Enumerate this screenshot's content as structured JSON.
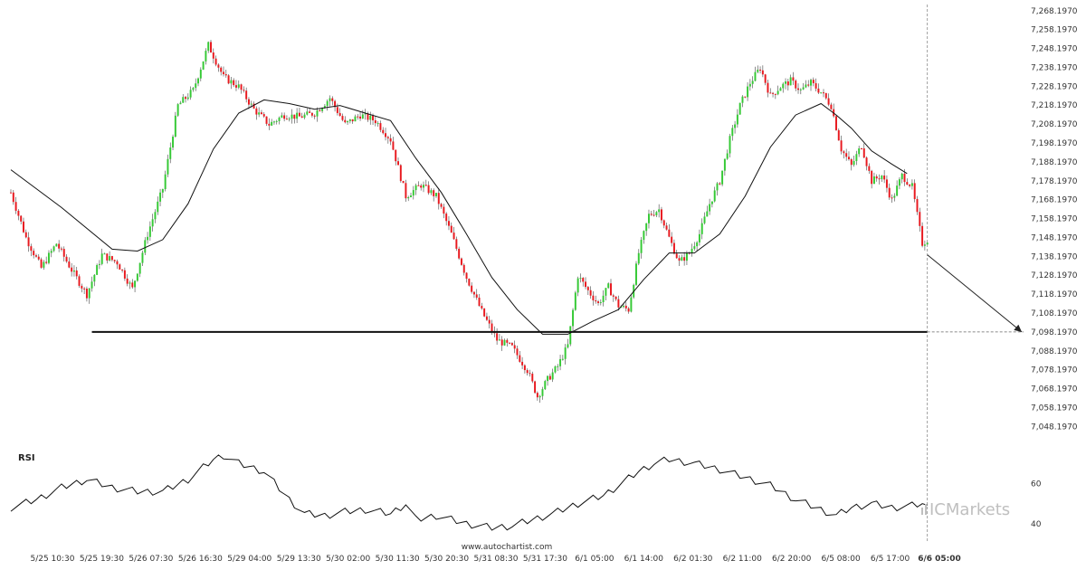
{
  "chart_data": {
    "type": "candlestick",
    "y_axis": {
      "ticks": [
        "7,048.1970",
        "7,058.1970",
        "7,068.1970",
        "7,078.1970",
        "7,088.1970",
        "7,098.1970",
        "7,108.1970",
        "7,118.1970",
        "7,128.1970",
        "7,138.1970",
        "7,148.1970",
        "7,158.1970",
        "7,168.1970",
        "7,178.1970",
        "7,188.1970",
        "7,198.1970",
        "7,208.1970",
        "7,218.1970",
        "7,228.1970",
        "7,238.1970",
        "7,248.1970",
        "7,258.1970",
        "7,268.1970"
      ],
      "ylim": [
        7045,
        7270
      ]
    },
    "x_axis": {
      "ticks": [
        "5/25 10:30",
        "5/25 19:30",
        "5/26 07:30",
        "5/26 16:30",
        "5/29 04:00",
        "5/29 13:30",
        "5/30 02:00",
        "5/30 11:30",
        "5/30 20:30",
        "5/31 08:30",
        "5/31 17:30",
        "6/1 05:00",
        "6/1 14:00",
        "6/2 01:30",
        "6/2 11:00",
        "6/2 20:00",
        "6/5 08:00",
        "6/5 17:00",
        "6/6 05:00"
      ],
      "highlighted": "6/6 05:00"
    },
    "price_path": [
      [
        0,
        7172
      ],
      [
        3,
        7148
      ],
      [
        6,
        7132
      ],
      [
        9,
        7145
      ],
      [
        12,
        7131
      ],
      [
        15,
        7118
      ],
      [
        18,
        7139
      ],
      [
        21,
        7135
      ],
      [
        24,
        7121
      ],
      [
        27,
        7150
      ],
      [
        30,
        7174
      ],
      [
        33,
        7218
      ],
      [
        36,
        7226
      ],
      [
        39,
        7250
      ],
      [
        42,
        7233
      ],
      [
        45,
        7228
      ],
      [
        48,
        7216
      ],
      [
        51,
        7208
      ],
      [
        54,
        7213
      ],
      [
        57,
        7212
      ],
      [
        60,
        7214
      ],
      [
        63,
        7222
      ],
      [
        66,
        7208
      ],
      [
        69,
        7213
      ],
      [
        72,
        7210
      ],
      [
        75,
        7200
      ],
      [
        78,
        7170
      ],
      [
        81,
        7176
      ],
      [
        84,
        7170
      ],
      [
        87,
        7150
      ],
      [
        90,
        7127
      ],
      [
        93,
        7109
      ],
      [
        96,
        7094
      ],
      [
        99,
        7090
      ],
      [
        102,
        7078
      ],
      [
        104,
        7064
      ],
      [
        106,
        7073
      ],
      [
        108,
        7080
      ],
      [
        110,
        7091
      ],
      [
        112,
        7128
      ],
      [
        114,
        7120
      ],
      [
        116,
        7113
      ],
      [
        118,
        7122
      ],
      [
        120,
        7112
      ],
      [
        122,
        7110
      ],
      [
        124,
        7140
      ],
      [
        126,
        7160
      ],
      [
        128,
        7163
      ],
      [
        130,
        7148
      ],
      [
        132,
        7135
      ],
      [
        134,
        7140
      ],
      [
        136,
        7150
      ],
      [
        138,
        7166
      ],
      [
        140,
        7178
      ],
      [
        142,
        7200
      ],
      [
        144,
        7218
      ],
      [
        146,
        7230
      ],
      [
        148,
        7238
      ],
      [
        150,
        7223
      ],
      [
        152,
        7228
      ],
      [
        154,
        7231
      ],
      [
        156,
        7226
      ],
      [
        158,
        7230
      ],
      [
        160,
        7225
      ],
      [
        162,
        7218
      ],
      [
        164,
        7195
      ],
      [
        166,
        7186
      ],
      [
        168,
        7197
      ],
      [
        170,
        7178
      ],
      [
        172,
        7181
      ],
      [
        174,
        7168
      ],
      [
        176,
        7181
      ],
      [
        178,
        7175
      ],
      [
        180,
        7145
      ],
      [
        181,
        7147
      ]
    ],
    "moving_average": [
      [
        0,
        7184
      ],
      [
        10,
        7164
      ],
      [
        20,
        7142
      ],
      [
        25,
        7141
      ],
      [
        30,
        7147
      ],
      [
        35,
        7166
      ],
      [
        40,
        7195
      ],
      [
        45,
        7214
      ],
      [
        50,
        7221
      ],
      [
        55,
        7219
      ],
      [
        60,
        7216
      ],
      [
        65,
        7218
      ],
      [
        70,
        7214
      ],
      [
        75,
        7210
      ],
      [
        80,
        7190
      ],
      [
        85,
        7172
      ],
      [
        90,
        7150
      ],
      [
        95,
        7127
      ],
      [
        100,
        7110
      ],
      [
        105,
        7097
      ],
      [
        110,
        7097
      ],
      [
        115,
        7104
      ],
      [
        120,
        7110
      ],
      [
        125,
        7126
      ],
      [
        130,
        7140
      ],
      [
        135,
        7140
      ],
      [
        140,
        7150
      ],
      [
        145,
        7170
      ],
      [
        150,
        7196
      ],
      [
        155,
        7213
      ],
      [
        160,
        7219
      ],
      [
        163,
        7213
      ],
      [
        166,
        7206
      ],
      [
        170,
        7194
      ],
      [
        174,
        7187
      ],
      [
        177,
        7182
      ]
    ],
    "support_level": 7098.197,
    "projection": {
      "from": [
        181,
        7139
      ],
      "to": [
        200,
        7098.197
      ]
    },
    "rsi": {
      "label": "RSI",
      "ticks": [
        "60",
        "40"
      ],
      "ylim": [
        35,
        80
      ],
      "values": [
        [
          0,
          48
        ],
        [
          5,
          52
        ],
        [
          10,
          58
        ],
        [
          15,
          62
        ],
        [
          20,
          58
        ],
        [
          25,
          56
        ],
        [
          30,
          56
        ],
        [
          35,
          62
        ],
        [
          40,
          72
        ],
        [
          42,
          74
        ],
        [
          45,
          70
        ],
        [
          50,
          66
        ],
        [
          55,
          52
        ],
        [
          58,
          45
        ],
        [
          62,
          44
        ],
        [
          66,
          46
        ],
        [
          70,
          47
        ],
        [
          75,
          45
        ],
        [
          78,
          50
        ],
        [
          80,
          42
        ],
        [
          84,
          44
        ],
        [
          90,
          40
        ],
        [
          95,
          38
        ],
        [
          99,
          39
        ],
        [
          103,
          42
        ],
        [
          107,
          45
        ],
        [
          112,
          50
        ],
        [
          117,
          54
        ],
        [
          120,
          59
        ],
        [
          124,
          66
        ],
        [
          127,
          70
        ],
        [
          130,
          72
        ],
        [
          135,
          70
        ],
        [
          140,
          67
        ],
        [
          145,
          63
        ],
        [
          150,
          59
        ],
        [
          155,
          52
        ],
        [
          160,
          47
        ],
        [
          163,
          44
        ],
        [
          166,
          48
        ],
        [
          170,
          50
        ],
        [
          174,
          48
        ],
        [
          178,
          49
        ],
        [
          180,
          50
        ],
        [
          181,
          48
        ]
      ]
    }
  },
  "footer": {
    "watermark": "www.autochartist.com",
    "brand": "ICMarkets"
  },
  "colors": {
    "up": "#35c935",
    "down": "#e8191f",
    "wick": "#444444",
    "ma": "#111111",
    "support": "#111111",
    "projection": "#222222",
    "brand": "#bfbfbf"
  }
}
